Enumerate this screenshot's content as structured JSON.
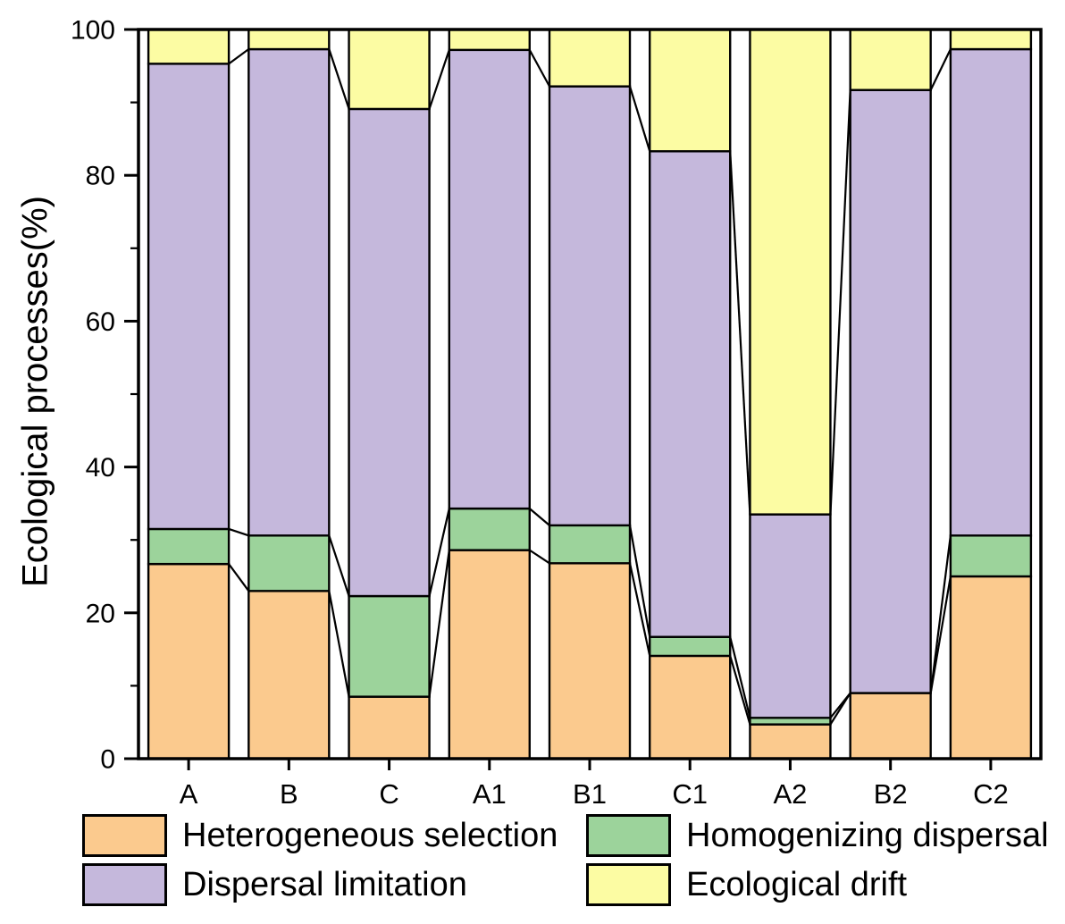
{
  "chart_data": {
    "type": "bar",
    "stacked": true,
    "title": "",
    "xlabel": "",
    "ylabel": "Ecological processes(%)",
    "ylim": [
      0,
      100
    ],
    "y_major_ticks": [
      0,
      20,
      40,
      60,
      80,
      100
    ],
    "y_minor_ticks": [
      10,
      30,
      50,
      70,
      90
    ],
    "grid": "off",
    "legend_position": "bottom",
    "connector_lines": true,
    "categories": [
      "A",
      "B",
      "C",
      "A1",
      "B1",
      "C1",
      "A2",
      "B2",
      "C2"
    ],
    "series": [
      {
        "name": "Heterogeneous selection",
        "color": "#FBCA8E",
        "values": [
          26.7,
          23.0,
          8.5,
          28.6,
          26.8,
          14.1,
          4.7,
          9.0,
          25.0
        ]
      },
      {
        "name": "Homogenizing dispersal",
        "color": "#9CD39B",
        "values": [
          4.8,
          7.6,
          13.8,
          5.7,
          5.2,
          2.6,
          0.9,
          0.0,
          5.6
        ]
      },
      {
        "name": "Dispersal limitation",
        "color": "#C5B8DC",
        "values": [
          63.8,
          66.7,
          66.8,
          62.9,
          60.2,
          66.6,
          27.9,
          82.7,
          66.7
        ]
      },
      {
        "name": "Ecological drift",
        "color": "#FCFCA3",
        "values": [
          4.7,
          2.7,
          10.9,
          2.8,
          7.8,
          16.7,
          66.5,
          8.3,
          2.7
        ]
      }
    ]
  },
  "style": {
    "bar_outline_color": "#000000",
    "frame_color": "#000000",
    "background_color": "#ffffff"
  }
}
